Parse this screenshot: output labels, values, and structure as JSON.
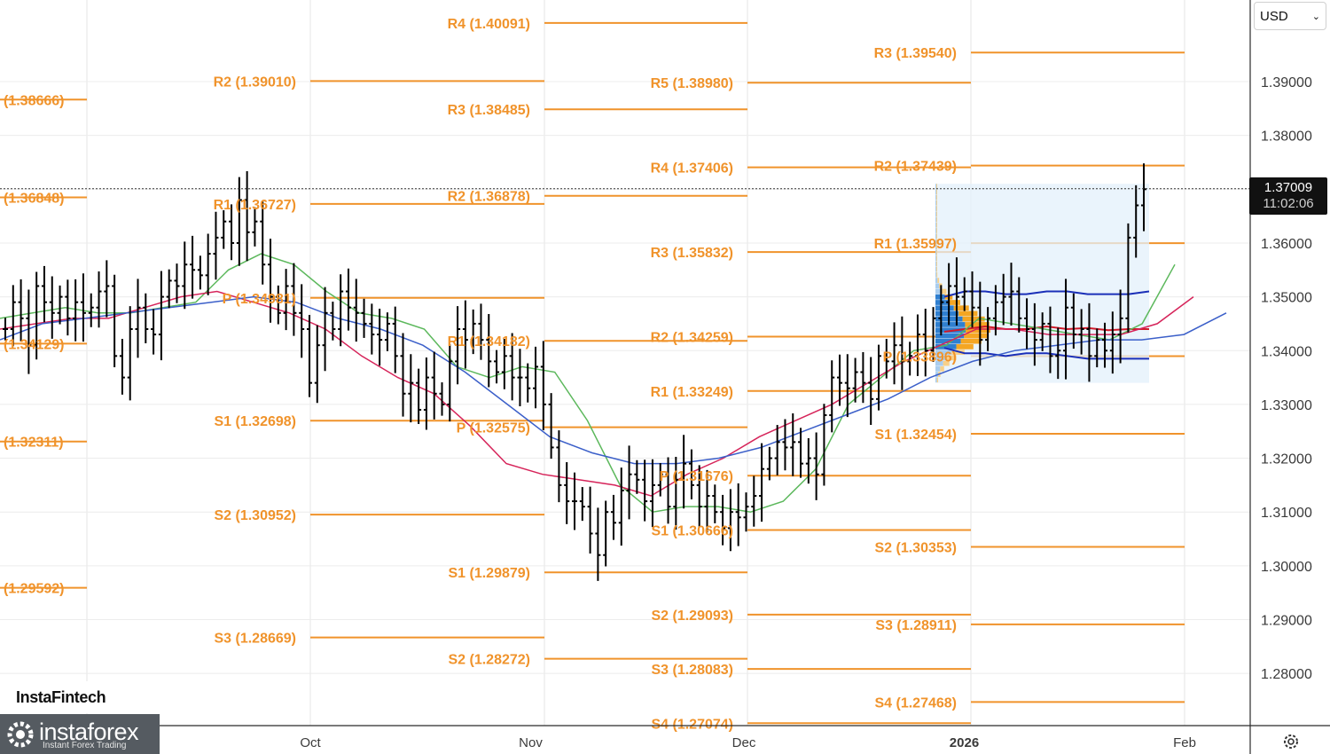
{
  "instrument": {
    "currency": "USD",
    "last_price": "1.37009",
    "countdown": "11:02:06"
  },
  "branding": {
    "fintech": "InstaFintech",
    "name": "instaforex",
    "tagline": "Instant Forex Trading"
  },
  "icons": {
    "settings": "gear-icon",
    "dropdown": "chevron-down-icon"
  },
  "colors": {
    "pivot_level": "#f0932b",
    "sma_fast": "#5cb85c",
    "sma_mid": "#d6245a",
    "sma_slow": "#3b5fc9",
    "bars": "#000000"
  },
  "chart_data": {
    "type": "line",
    "chart_kind": "OHLC bar chart with moving averages, monthly/weekly pivot levels and volume profile",
    "y_axis": {
      "ticks": [
        "1.39000",
        "1.38000",
        "1.37000",
        "1.36000",
        "1.35000",
        "1.34000",
        "1.33000",
        "1.32000",
        "1.31000",
        "1.30000",
        "1.29000",
        "1.28000"
      ],
      "range": [
        1.2695,
        1.405
      ]
    },
    "x_axis": {
      "ticks": [
        {
          "label": "Oct",
          "date": "2025-10-01",
          "bold": false
        },
        {
          "label": "Nov",
          "date": "2025-11-01",
          "bold": false
        },
        {
          "label": "Dec",
          "date": "2025-12-01",
          "bold": false
        },
        {
          "label": "2026",
          "date": "2026-01-01",
          "bold": true
        },
        {
          "label": "Feb",
          "date": "2026-02-01",
          "bold": false
        }
      ]
    },
    "last_price": 1.37009,
    "pivot_levels": [
      {
        "period": "Aug",
        "label": "(1.38666)",
        "value": 1.38666
      },
      {
        "period": "Aug",
        "label": "(1.36848)",
        "value": 1.36848
      },
      {
        "period": "Aug",
        "label": "(1.34129)",
        "value": 1.34129
      },
      {
        "period": "Aug",
        "label": "(1.32311)",
        "value": 1.32311
      },
      {
        "period": "Aug",
        "label": "(1.29592)",
        "value": 1.29592
      },
      {
        "period": "Sep",
        "label": "R2 (1.39010)",
        "value": 1.3901
      },
      {
        "period": "Sep",
        "label": "R1 (1.36727)",
        "value": 1.36727
      },
      {
        "period": "Sep",
        "label": "P (1.34981)",
        "value": 1.34981
      },
      {
        "period": "Sep",
        "label": "S1 (1.32698)",
        "value": 1.32698
      },
      {
        "period": "Sep",
        "label": "S2 (1.30952)",
        "value": 1.30952
      },
      {
        "period": "Sep",
        "label": "S3 (1.28669)",
        "value": 1.28669
      },
      {
        "period": "Oct",
        "label": "R4 (1.40091)",
        "value": 1.40091
      },
      {
        "period": "Oct",
        "label": "R3 (1.38485)",
        "value": 1.38485
      },
      {
        "period": "Oct",
        "label": "R2 (1.36878)",
        "value": 1.36878
      },
      {
        "period": "Oct",
        "label": "R1 (1.34182)",
        "value": 1.34182
      },
      {
        "period": "Oct",
        "label": "P (1.32575)",
        "value": 1.32575
      },
      {
        "period": "Oct",
        "label": "S1 (1.29879)",
        "value": 1.29879
      },
      {
        "period": "Oct",
        "label": "S2 (1.28272)",
        "value": 1.28272
      },
      {
        "period": "Nov",
        "label": "R5 (1.38980)",
        "value": 1.3898
      },
      {
        "period": "Nov",
        "label": "R4 (1.37406)",
        "value": 1.37406
      },
      {
        "period": "Nov",
        "label": "R3 (1.35832)",
        "value": 1.35832
      },
      {
        "period": "Nov",
        "label": "R2 (1.34259)",
        "value": 1.34259
      },
      {
        "period": "Nov",
        "label": "R1 (1.33249)",
        "value": 1.33249
      },
      {
        "period": "Nov",
        "label": "P (1.31676)",
        "value": 1.31676
      },
      {
        "period": "Nov",
        "label": "S1 (1.30666)",
        "value": 1.30666
      },
      {
        "period": "Nov",
        "label": "S2 (1.29093)",
        "value": 1.29093
      },
      {
        "period": "Nov",
        "label": "S3 (1.28083)",
        "value": 1.28083
      },
      {
        "period": "Nov",
        "label": "S4 (1.27074)",
        "value": 1.27074
      },
      {
        "period": "Dec",
        "label": "R3 (1.39540)",
        "value": 1.3954
      },
      {
        "period": "Dec",
        "label": "R2 (1.37439)",
        "value": 1.37439
      },
      {
        "period": "Dec",
        "label": "R1 (1.35997)",
        "value": 1.35997
      },
      {
        "period": "Dec",
        "label": "P (1.33896)",
        "value": 1.33896
      },
      {
        "period": "Dec",
        "label": "S1 (1.32454)",
        "value": 1.32454
      },
      {
        "period": "Dec",
        "label": "S2 (1.30353)",
        "value": 1.30353
      },
      {
        "period": "Dec",
        "label": "S3 (1.28911)",
        "value": 1.28911
      },
      {
        "period": "Dec",
        "label": "S4 (1.27468)",
        "value": 1.27468
      }
    ],
    "bars_close": [
      1.344,
      1.349,
      1.346,
      1.341,
      1.352,
      1.349,
      1.347,
      1.35,
      1.346,
      1.349,
      1.347,
      1.348,
      1.351,
      1.352,
      1.339,
      1.335,
      1.344,
      1.348,
      1.344,
      1.343,
      1.35,
      1.353,
      1.352,
      1.356,
      1.355,
      1.354,
      1.358,
      1.361,
      1.364,
      1.36,
      1.368,
      1.362,
      1.364,
      1.356,
      1.35,
      1.347,
      1.352,
      1.347,
      1.344,
      1.334,
      1.341,
      1.347,
      1.344,
      1.351,
      1.348,
      1.347,
      1.345,
      1.343,
      1.342,
      1.345,
      1.339,
      1.332,
      1.334,
      1.329,
      1.335,
      1.332,
      1.33,
      1.338,
      1.344,
      1.342,
      1.345,
      1.342,
      1.338,
      1.336,
      1.339,
      1.335,
      1.335,
      1.333,
      1.337,
      1.33,
      1.322,
      1.315,
      1.312,
      1.312,
      1.311,
      1.306,
      1.302,
      1.31,
      1.308,
      1.314,
      1.317,
      1.316,
      1.312,
      1.315,
      1.317,
      1.311,
      1.316,
      1.319,
      1.315,
      1.311,
      1.313,
      1.31,
      1.307,
      1.31,
      1.309,
      1.311,
      1.313,
      1.318,
      1.32,
      1.323,
      1.322,
      1.323,
      1.319,
      1.32,
      1.317,
      1.328,
      1.335,
      1.334,
      1.333,
      1.336,
      1.334,
      1.331,
      1.339,
      1.338,
      1.341,
      1.338,
      1.339,
      1.343,
      1.34,
      1.346,
      1.349,
      1.352,
      1.35,
      1.351,
      1.348,
      1.342,
      1.346,
      1.349,
      1.35,
      1.351,
      1.346,
      1.344,
      1.342,
      1.345,
      1.339,
      1.34,
      1.348,
      1.343,
      1.344,
      1.339,
      1.342,
      1.34,
      1.343,
      1.346,
      1.361,
      1.367,
      1.37
    ],
    "sma_fast": {
      "name": "",
      "values": [
        1.346,
        1.347,
        1.348,
        1.347,
        1.347,
        1.348,
        1.349,
        1.355,
        1.358,
        1.356,
        1.351,
        1.347,
        1.346,
        1.344,
        1.337,
        1.335,
        1.337,
        1.336,
        1.327,
        1.315,
        1.31,
        1.311,
        1.311,
        1.31,
        1.312,
        1.318,
        1.33,
        1.335,
        1.34,
        1.341,
        1.346,
        1.345,
        1.344,
        1.343,
        1.342,
        1.345,
        1.356
      ]
    },
    "sma_mid": {
      "name": "",
      "values": [
        1.344,
        1.345,
        1.346,
        1.346,
        1.348,
        1.35,
        1.351,
        1.349,
        1.347,
        1.344,
        1.339,
        1.335,
        1.332,
        1.326,
        1.319,
        1.317,
        1.316,
        1.315,
        1.313,
        1.317,
        1.32,
        1.324,
        1.327,
        1.33,
        1.334,
        1.338,
        1.341,
        1.344,
        1.344,
        1.343,
        1.343,
        1.343,
        1.345,
        1.35
      ]
    },
    "sma_slow": {
      "name": "",
      "values": [
        1.342,
        1.345,
        1.346,
        1.347,
        1.348,
        1.349,
        1.35,
        1.349,
        1.346,
        1.344,
        1.341,
        1.336,
        1.33,
        1.324,
        1.321,
        1.319,
        1.319,
        1.32,
        1.322,
        1.325,
        1.328,
        1.331,
        1.335,
        1.338,
        1.34,
        1.341,
        1.342,
        1.342,
        1.343,
        1.347
      ]
    },
    "volume_profile": {
      "range": [
        1.334,
        1.371
      ],
      "poc": 1.3435,
      "value_area": [
        1.34,
        1.35
      ]
    }
  }
}
